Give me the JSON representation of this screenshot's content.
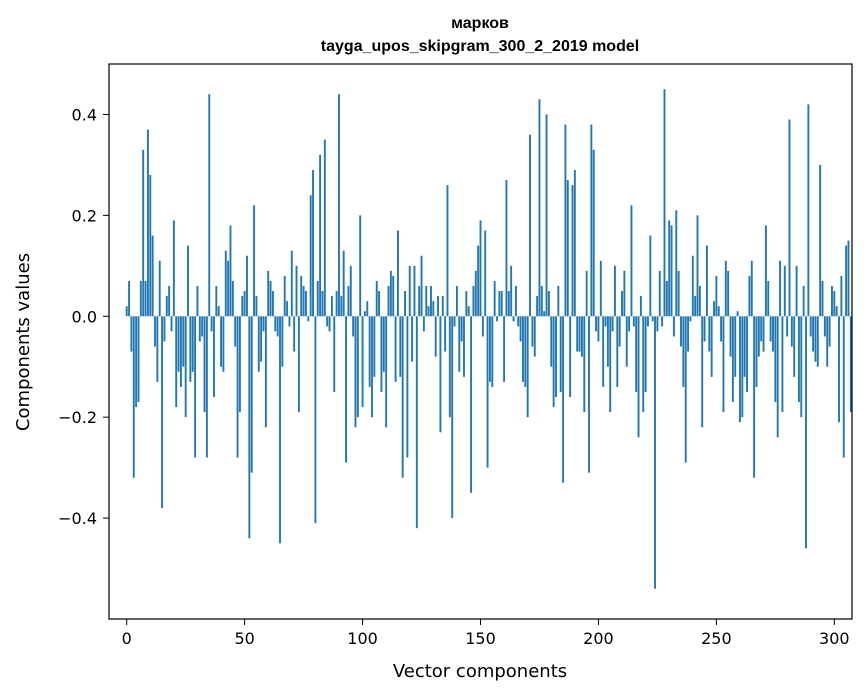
{
  "chart_data": {
    "type": "bar",
    "title": "марков",
    "subtitle": "tayga_upos_skipgram_300_2_2019 model",
    "xlabel": "Vector components",
    "ylabel": "Components values",
    "xlim": [
      -7.5,
      307.5
    ],
    "ylim": [
      -0.6,
      0.5
    ],
    "xticks": [
      0,
      50,
      100,
      150,
      200,
      250,
      300
    ],
    "yticks": [
      -0.4,
      -0.2,
      0.0,
      0.2,
      0.4
    ],
    "ytick_labels": [
      "−0.4",
      "−0.2",
      "0.0",
      "0.2",
      "0.4"
    ],
    "color": "#1f77b4",
    "grid": false,
    "legend": "none",
    "values": [
      0.02,
      0.07,
      -0.07,
      -0.32,
      -0.18,
      -0.17,
      0.07,
      0.33,
      0.07,
      0.37,
      0.28,
      0.16,
      -0.06,
      -0.13,
      0.11,
      -0.38,
      -0.05,
      0.04,
      0.06,
      -0.03,
      0.19,
      -0.18,
      -0.11,
      -0.14,
      -0.1,
      -0.2,
      0.14,
      -0.13,
      -0.11,
      -0.28,
      0.06,
      -0.05,
      -0.04,
      -0.19,
      -0.28,
      0.44,
      -0.03,
      -0.16,
      0.06,
      0.02,
      -0.1,
      -0.11,
      0.13,
      0.11,
      0.18,
      0.07,
      -0.06,
      -0.28,
      -0.19,
      0.04,
      0.05,
      0.12,
      -0.44,
      -0.31,
      0.22,
      0.04,
      -0.11,
      -0.09,
      -0.03,
      -0.22,
      0.09,
      0.07,
      0.05,
      -0.03,
      -0.04,
      -0.45,
      -0.1,
      0.08,
      0.03,
      -0.02,
      0.13,
      -0.07,
      0.1,
      -0.19,
      0.08,
      0.06,
      0.05,
      -0.01,
      0.24,
      0.29,
      -0.41,
      0.07,
      0.32,
      0.05,
      0.35,
      -0.02,
      -0.03,
      0.04,
      -0.15,
      0.05,
      0.44,
      0.04,
      0.13,
      -0.29,
      0.06,
      0.1,
      -0.04,
      -0.22,
      -0.2,
      0.2,
      -0.18,
      0.01,
      0.03,
      -0.14,
      -0.2,
      -0.12,
      0.07,
      0.05,
      -0.15,
      -0.11,
      -0.22,
      0.06,
      0.09,
      0.08,
      -0.13,
      0.17,
      -0.12,
      -0.32,
      0.05,
      -0.28,
      0.1,
      -0.09,
      0.1,
      -0.42,
      0.06,
      0.12,
      -0.03,
      0.06,
      0.02,
      0.06,
      0.03,
      -0.08,
      0.04,
      -0.23,
      0.04,
      -0.07,
      0.26,
      -0.2,
      -0.4,
      -0.02,
      0.06,
      -0.11,
      -0.05,
      -0.12,
      0.05,
      0.02,
      -0.35,
      0.06,
      0.09,
      0.14,
      0.19,
      -0.04,
      0.17,
      -0.3,
      -0.13,
      -0.14,
      0.07,
      -0.01,
      0.05,
      0.05,
      -0.13,
      0.27,
      0.05,
      0.1,
      -0.01,
      0.06,
      -0.02,
      -0.05,
      -0.13,
      -0.14,
      -0.2,
      0.36,
      -0.06,
      -0.08,
      0.04,
      0.43,
      0.06,
      0.01,
      0.4,
      0.05,
      -0.1,
      -0.18,
      -0.16,
      0.06,
      -0.15,
      -0.33,
      0.38,
      0.27,
      -0.16,
      0.26,
      0.29,
      -0.07,
      -0.07,
      -0.08,
      -0.19,
      0.09,
      -0.31,
      0.38,
      0.33,
      -0.03,
      -0.05,
      0.11,
      -0.14,
      -0.02,
      -0.1,
      -0.19,
      -0.03,
      0.1,
      -0.14,
      -0.06,
      0.05,
      0.09,
      -0.1,
      -0.03,
      0.22,
      -0.02,
      -0.15,
      -0.24,
      0.04,
      -0.19,
      -0.15,
      -0.02,
      0.16,
      -0.01,
      -0.54,
      -0.03,
      0.09,
      -0.02,
      0.45,
      0.07,
      0.19,
      0.18,
      -0.04,
      0.21,
      0.09,
      -0.06,
      -0.14,
      -0.29,
      -0.07,
      -0.01,
      0.12,
      0.04,
      0.2,
      0.06,
      -0.22,
      -0.05,
      0.14,
      -0.07,
      -0.12,
      0.03,
      0.08,
      0.02,
      -0.05,
      -0.19,
      0.11,
      0.09,
      -0.08,
      -0.17,
      -0.12,
      0.01,
      -0.21,
      -0.2,
      -0.12,
      -0.15,
      0.08,
      0.11,
      -0.32,
      -0.14,
      -0.08,
      -0.05,
      -0.07,
      0.18,
      0.07,
      -0.05,
      -0.07,
      -0.17,
      -0.24,
      0.11,
      -0.19,
      0.1,
      -0.04,
      0.39,
      -0.06,
      -0.12,
      0.1,
      -0.17,
      -0.2,
      0.06,
      -0.46,
      0.42,
      -0.04,
      -0.07,
      -0.09,
      -0.1,
      0.3,
      0.07,
      -0.04,
      -0.1,
      -0.06,
      0.06,
      0.05,
      0.02,
      -0.21,
      0.08,
      -0.28,
      0.14,
      0.15,
      -0.19
    ]
  }
}
